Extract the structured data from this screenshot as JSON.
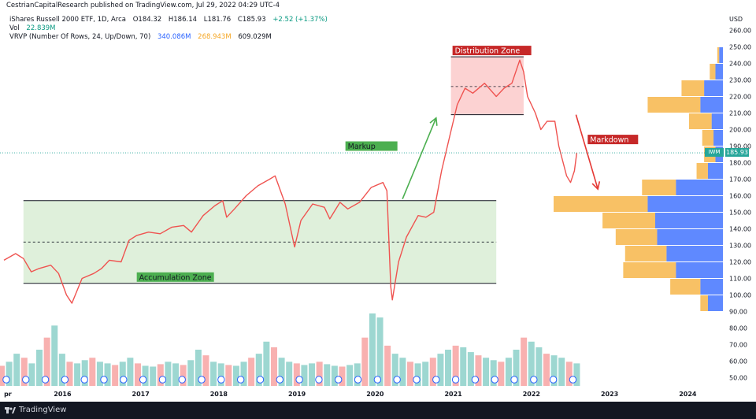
{
  "header": {
    "publish_line": "CestrianCapitalResearch published on TradingView.com, Jul 29, 2022 04:29 UTC-4",
    "symbol_line": "iShares Russell 2000 ETF, 1D, Arca",
    "ohlc": {
      "o_label": "O",
      "o": "184.32",
      "h_label": "H",
      "h": "186.14",
      "l_label": "L",
      "l": "181.76",
      "c_label": "C",
      "c": "185.93",
      "change": "+2.52 (+1.37%)"
    },
    "vol_label": "Vol",
    "vol_value": "22.839M",
    "vrvp_label": "VRVP (Number Of Rows, 24, Up/Down, 70)",
    "vrvp_up": "340.086M",
    "vrvp_down": "268.943M",
    "vrvp_total": "609.029M"
  },
  "chart_data": {
    "type": "line",
    "currency_label": "USD",
    "y_axis_ticks": [
      50,
      60,
      70,
      80,
      90,
      100,
      110,
      120,
      130,
      140,
      150,
      160,
      170,
      180,
      190,
      200,
      210,
      220,
      230,
      240,
      250,
      260
    ],
    "y_tick_labels": [
      "50.00",
      "60.00",
      "70.00",
      "80.00",
      "90.00",
      "100.00",
      "110.00",
      "120.00",
      "130.00",
      "140.00",
      "150.00",
      "160.00",
      "170.00",
      "180.00",
      "190.00",
      "200.00",
      "210.00",
      "220.00",
      "230.00",
      "240.00",
      "250.00",
      "260.00"
    ],
    "ylim": [
      45,
      265
    ],
    "x_axis_labels": [
      "pr",
      "2016",
      "2017",
      "2018",
      "2019",
      "2020",
      "2021",
      "2022",
      "2023",
      "2024"
    ],
    "x_axis_years": [
      2015.3,
      2016,
      2017,
      2018,
      2019,
      2020,
      2021,
      2022,
      2023,
      2024
    ],
    "xlim": [
      2015.2,
      2024.45
    ],
    "last_x": 2022.58,
    "price_series": {
      "name": "IWM",
      "points": [
        [
          2015.25,
          121
        ],
        [
          2015.4,
          125
        ],
        [
          2015.5,
          122
        ],
        [
          2015.6,
          114
        ],
        [
          2015.7,
          116
        ],
        [
          2015.85,
          118
        ],
        [
          2015.95,
          113
        ],
        [
          2016.05,
          100
        ],
        [
          2016.12,
          95
        ],
        [
          2016.25,
          110
        ],
        [
          2016.4,
          113
        ],
        [
          2016.5,
          116
        ],
        [
          2016.6,
          121
        ],
        [
          2016.75,
          120
        ],
        [
          2016.85,
          133
        ],
        [
          2016.95,
          136
        ],
        [
          2017.1,
          138
        ],
        [
          2017.25,
          137
        ],
        [
          2017.4,
          141
        ],
        [
          2017.55,
          142
        ],
        [
          2017.65,
          138
        ],
        [
          2017.8,
          148
        ],
        [
          2017.95,
          154
        ],
        [
          2018.05,
          157
        ],
        [
          2018.1,
          147
        ],
        [
          2018.2,
          152
        ],
        [
          2018.35,
          160
        ],
        [
          2018.5,
          166
        ],
        [
          2018.65,
          170
        ],
        [
          2018.72,
          172
        ],
        [
          2018.85,
          155
        ],
        [
          2018.97,
          129
        ],
        [
          2019.05,
          145
        ],
        [
          2019.2,
          155
        ],
        [
          2019.35,
          153
        ],
        [
          2019.42,
          146
        ],
        [
          2019.55,
          156
        ],
        [
          2019.65,
          152
        ],
        [
          2019.8,
          156
        ],
        [
          2019.95,
          165
        ],
        [
          2020.1,
          168
        ],
        [
          2020.15,
          163
        ],
        [
          2020.2,
          105
        ],
        [
          2020.22,
          97
        ],
        [
          2020.3,
          120
        ],
        [
          2020.4,
          135
        ],
        [
          2020.55,
          148
        ],
        [
          2020.65,
          147
        ],
        [
          2020.75,
          150
        ],
        [
          2020.85,
          175
        ],
        [
          2020.95,
          195
        ],
        [
          2021.05,
          215
        ],
        [
          2021.15,
          225
        ],
        [
          2021.25,
          222
        ],
        [
          2021.4,
          228
        ],
        [
          2021.55,
          220
        ],
        [
          2021.65,
          225
        ],
        [
          2021.75,
          228
        ],
        [
          2021.85,
          242
        ],
        [
          2021.9,
          235
        ],
        [
          2021.95,
          220
        ],
        [
          2022.05,
          210
        ],
        [
          2022.12,
          200
        ],
        [
          2022.2,
          205
        ],
        [
          2022.3,
          205
        ],
        [
          2022.35,
          190
        ],
        [
          2022.45,
          172
        ],
        [
          2022.5,
          168
        ],
        [
          2022.55,
          175
        ],
        [
          2022.58,
          185.93
        ]
      ]
    },
    "volume_series": {
      "name": "Vol",
      "values_millions": [
        25,
        30,
        40,
        35,
        28,
        45,
        60,
        75,
        40,
        30,
        28,
        32,
        35,
        30,
        28,
        26,
        30,
        35,
        28,
        25,
        24,
        27,
        30,
        28,
        26,
        32,
        45,
        38,
        30,
        28,
        26,
        25,
        30,
        35,
        40,
        55,
        48,
        35,
        30,
        28,
        26,
        28,
        30,
        27,
        25,
        24,
        26,
        28,
        60,
        90,
        85,
        50,
        40,
        35,
        30,
        28,
        30,
        35,
        40,
        45,
        50,
        48,
        42,
        38,
        35,
        32,
        30,
        35,
        45,
        60,
        55,
        48,
        40,
        38,
        35,
        30,
        28
      ]
    },
    "volume_profile": {
      "name": "VRVP",
      "row_prices": [
        95,
        105,
        115,
        125,
        135,
        145,
        155,
        165,
        175,
        185,
        195,
        205,
        215,
        225,
        235,
        245
      ],
      "up_volume": [
        8,
        12,
        25,
        30,
        35,
        36,
        40,
        25,
        8,
        4,
        5,
        6,
        12,
        10,
        4,
        2
      ],
      "down_volume": [
        4,
        16,
        28,
        22,
        22,
        28,
        50,
        18,
        6,
        6,
        6,
        12,
        28,
        12,
        3,
        1
      ]
    },
    "annotations": [
      {
        "type": "zone",
        "label": "Accumulation Zone",
        "x_start": 2015.5,
        "x_end": 2021.55,
        "y_low": 107,
        "y_high": 157,
        "mid": 132,
        "fill": "#dff0db",
        "label_bg": "#4caf50"
      },
      {
        "type": "zone",
        "label": "Distribution Zone",
        "x_start": 2020.97,
        "x_end": 2021.9,
        "y_low": 209,
        "y_high": 244,
        "mid": 226,
        "fill": "#fcd2d2",
        "label_bg": "#c62828"
      },
      {
        "type": "arrow",
        "label": "Markup",
        "from": [
          2020.35,
          158
        ],
        "to": [
          2020.78,
          207
        ],
        "color": "#4caf50",
        "label_bg": "#4caf50"
      },
      {
        "type": "arrow",
        "label": "Markdown",
        "from": [
          2022.57,
          209
        ],
        "to": [
          2022.85,
          164
        ],
        "color": "#e53935",
        "label_bg": "#c62828"
      }
    ],
    "last_price_label": "185.93",
    "last_price_ticker": "IWM",
    "colors": {
      "up": "#26a69a",
      "down": "#ef5350",
      "vp_up": "#2962ff",
      "vp_down": "#f5a623",
      "accent": "#26a69a"
    }
  },
  "footer": {
    "brand": "TradingView"
  }
}
